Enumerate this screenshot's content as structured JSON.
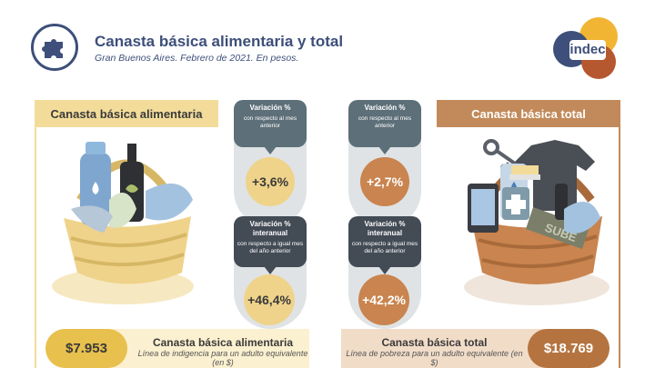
{
  "header": {
    "title": "Canasta básica alimentaria y total",
    "subtitle": "Gran Buenos Aires. Febrero de 2021. En pesos.",
    "icon": "puzzle-piece-icon"
  },
  "logo": {
    "text": "indec",
    "colors": [
      "#f2b533",
      "#3d4f7a",
      "#b5572f"
    ]
  },
  "cba": {
    "heading": "Canasta básica alimentaria",
    "monthly": {
      "title": "Variación %",
      "subtitle": "con respecto al mes anterior",
      "value": "+3,6%"
    },
    "yearly": {
      "title_line1": "Variación %",
      "title_line2": "interanual",
      "subtitle": "con respecto a igual mes del año anterior",
      "value": "+46,4%"
    },
    "footer": {
      "value": "$7.953",
      "title": "Canasta básica alimentaria",
      "subtitle": "Línea de indigencia para un adulto equivalente (en $)"
    },
    "color": "#e8c04d"
  },
  "cbt": {
    "heading": "Canasta básica total",
    "monthly": {
      "title": "Variación %",
      "subtitle": "con respecto al mes anterior",
      "value": "+2,7%"
    },
    "yearly": {
      "title_line1": "Variación %",
      "title_line2": "interanual",
      "subtitle": "con respecto a igual mes del año anterior",
      "value": "+42,2%"
    },
    "footer": {
      "value": "$18.769",
      "title": "Canasta básica total",
      "subtitle": "Línea de pobreza para un adulto equivalente (en $)"
    },
    "basket_label": "SUBE",
    "color": "#b5743f"
  }
}
